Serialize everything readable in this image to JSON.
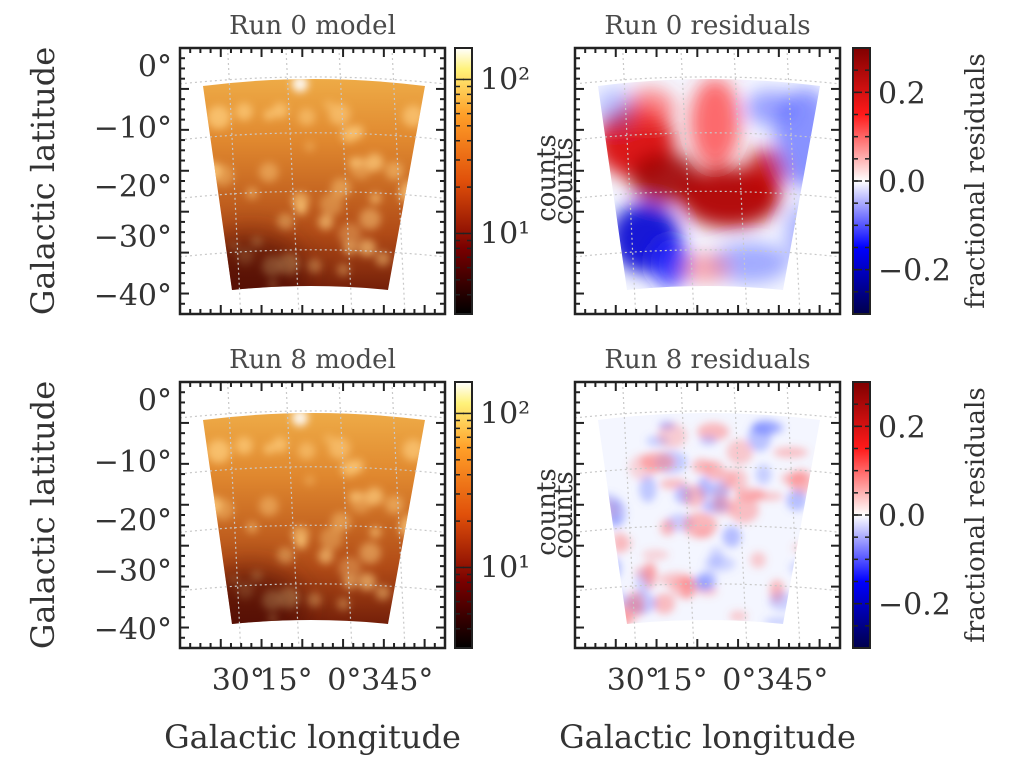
{
  "chart_data": [
    {
      "type": "heatmap",
      "title": "Run 0 model",
      "xlabel": "",
      "ylabel": "Galactic latitude",
      "x_ticks": [],
      "y_ticks": [
        "0°",
        "−10°",
        "−20°",
        "−30°",
        "−40°"
      ],
      "y_values": [
        0,
        -10,
        -20,
        -30,
        -40
      ],
      "colormap": "afmhot",
      "scale": "log",
      "colorbar": {
        "label": "counts",
        "ticks": [
          "10¹",
          "10²"
        ],
        "range": [
          3,
          160
        ]
      }
    },
    {
      "type": "heatmap",
      "title": "Run 0 residuals",
      "xlabel": "",
      "ylabel": "",
      "x_ticks": [],
      "colormap": "seismic",
      "colorbar": {
        "label": "fractional residuals",
        "ticks": [
          "0.2",
          "0.0",
          "−0.2"
        ],
        "tick_values": [
          0.2,
          0.0,
          -0.2
        ],
        "range": [
          -0.3,
          0.3
        ]
      }
    },
    {
      "type": "heatmap",
      "title": "Run 8 model",
      "xlabel": "Galactic longitude",
      "ylabel": "Galactic latitude",
      "x_ticks": [
        "30°",
        "15°",
        "0°",
        "345°"
      ],
      "x_values": [
        30,
        15,
        0,
        345
      ],
      "y_ticks": [
        "0°",
        "−10°",
        "−20°",
        "−30°",
        "−40°"
      ],
      "y_values": [
        0,
        -10,
        -20,
        -30,
        -40
      ],
      "colormap": "afmhot",
      "scale": "log",
      "colorbar": {
        "label": "counts",
        "ticks": [
          "10¹",
          "10²"
        ],
        "range": [
          3,
          160
        ]
      }
    },
    {
      "type": "heatmap",
      "title": "Run 8 residuals",
      "xlabel": "Galactic longitude",
      "ylabel": "",
      "x_ticks": [
        "30°",
        "15°",
        "0°",
        "345°"
      ],
      "x_values": [
        30,
        15,
        0,
        345
      ],
      "colormap": "seismic",
      "colorbar": {
        "label": "fractional residuals",
        "ticks": [
          "0.2",
          "0.0",
          "−0.2"
        ],
        "tick_values": [
          0.2,
          0.0,
          -0.2
        ],
        "range": [
          -0.3,
          0.3
        ]
      }
    }
  ]
}
